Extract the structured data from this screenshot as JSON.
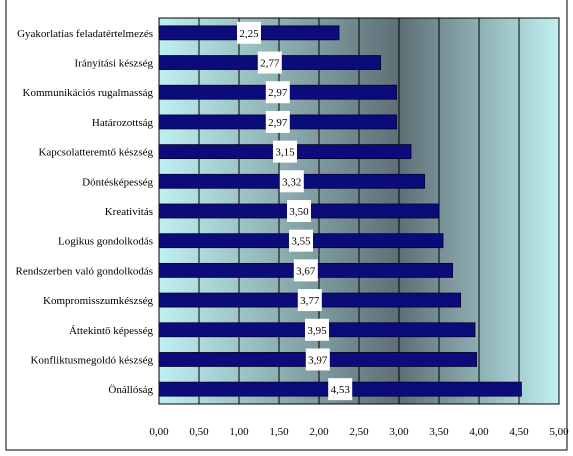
{
  "chart_data": {
    "type": "bar",
    "orientation": "horizontal",
    "categories": [
      "Gyakorlatias feladatértelmezés",
      "Irányítási készség",
      "Kommunikációs rugalmasság",
      "Határozottság",
      "Kapcsolatteremtő készség",
      "Döntésképesség",
      "Kreativitás",
      "Logikus gondolkodás",
      "Rendszerben való gondolkodás",
      "Kompromisszumkészség",
      "Áttekintő képesség",
      "Konfliktusmegoldó készség",
      "Önállóság"
    ],
    "values": [
      2.25,
      2.77,
      2.97,
      2.97,
      3.15,
      3.32,
      3.5,
      3.55,
      3.67,
      3.77,
      3.95,
      3.97,
      4.53
    ],
    "value_labels": [
      "2,25",
      "2,77",
      "2,97",
      "2,97",
      "3,15",
      "3,32",
      "3,50",
      "3,55",
      "3,67",
      "3,77",
      "3,95",
      "3,97",
      "4,53"
    ],
    "xlim": [
      0,
      5
    ],
    "x_ticks": [
      0,
      0.5,
      1,
      1.5,
      2,
      2.5,
      3,
      3.5,
      4,
      4.5,
      5
    ],
    "x_tick_labels": [
      "0,00",
      "0,50",
      "1,00",
      "1,50",
      "2,00",
      "2,50",
      "3,00",
      "3,50",
      "4,00",
      "4,50",
      "5,00"
    ],
    "grid": "vertical major gridlines",
    "legend": "none",
    "colors": {
      "bar": "#0b0b7a",
      "bar_border": "#000033",
      "plot_bg_edge": "#bff0f0",
      "plot_bg_center": "#5d6f75",
      "label_box": "#ffffff",
      "gridline": "#000000"
    }
  }
}
